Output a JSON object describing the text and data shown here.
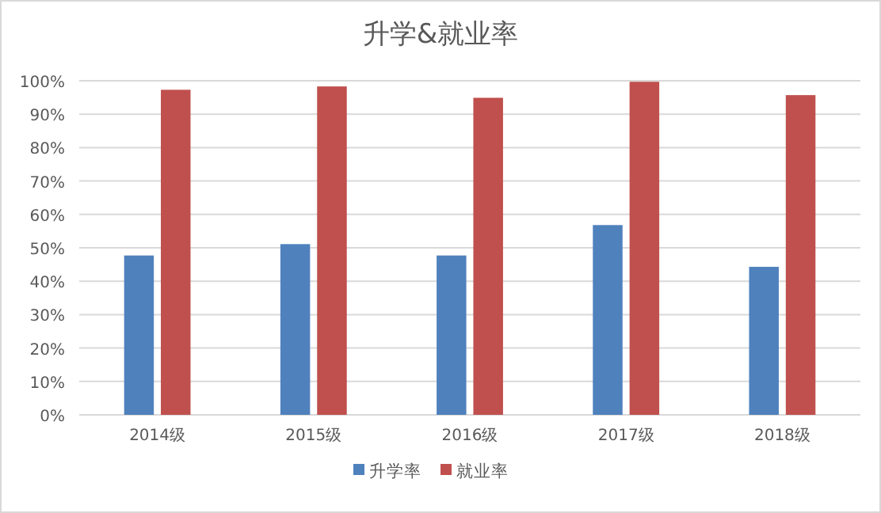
{
  "chart_data": {
    "type": "bar",
    "title": "升学&就业率",
    "categories": [
      "2014级",
      "2015级",
      "2016级",
      "2017级",
      "2018级"
    ],
    "series": [
      {
        "name": "升学率",
        "color": "#4f81bd",
        "values": [
          47.7,
          51.1,
          47.7,
          56.8,
          44.3
        ]
      },
      {
        "name": "就业率",
        "color": "#c0504d",
        "values": [
          97.3,
          98.3,
          94.9,
          99.7,
          95.7
        ]
      }
    ],
    "ylim": [
      0,
      100
    ],
    "yticks": [
      {
        "value": 0,
        "label": "0%"
      },
      {
        "value": 10,
        "label": "10%"
      },
      {
        "value": 20,
        "label": "20%"
      },
      {
        "value": 30,
        "label": "30%"
      },
      {
        "value": 40,
        "label": "40%"
      },
      {
        "value": 50,
        "label": "50%"
      },
      {
        "value": 60,
        "label": "60%"
      },
      {
        "value": 70,
        "label": "70%"
      },
      {
        "value": 80,
        "label": "80%"
      },
      {
        "value": 90,
        "label": "90%"
      },
      {
        "value": 100,
        "label": "100%"
      }
    ],
    "grid": "y",
    "legend": "bottom"
  }
}
